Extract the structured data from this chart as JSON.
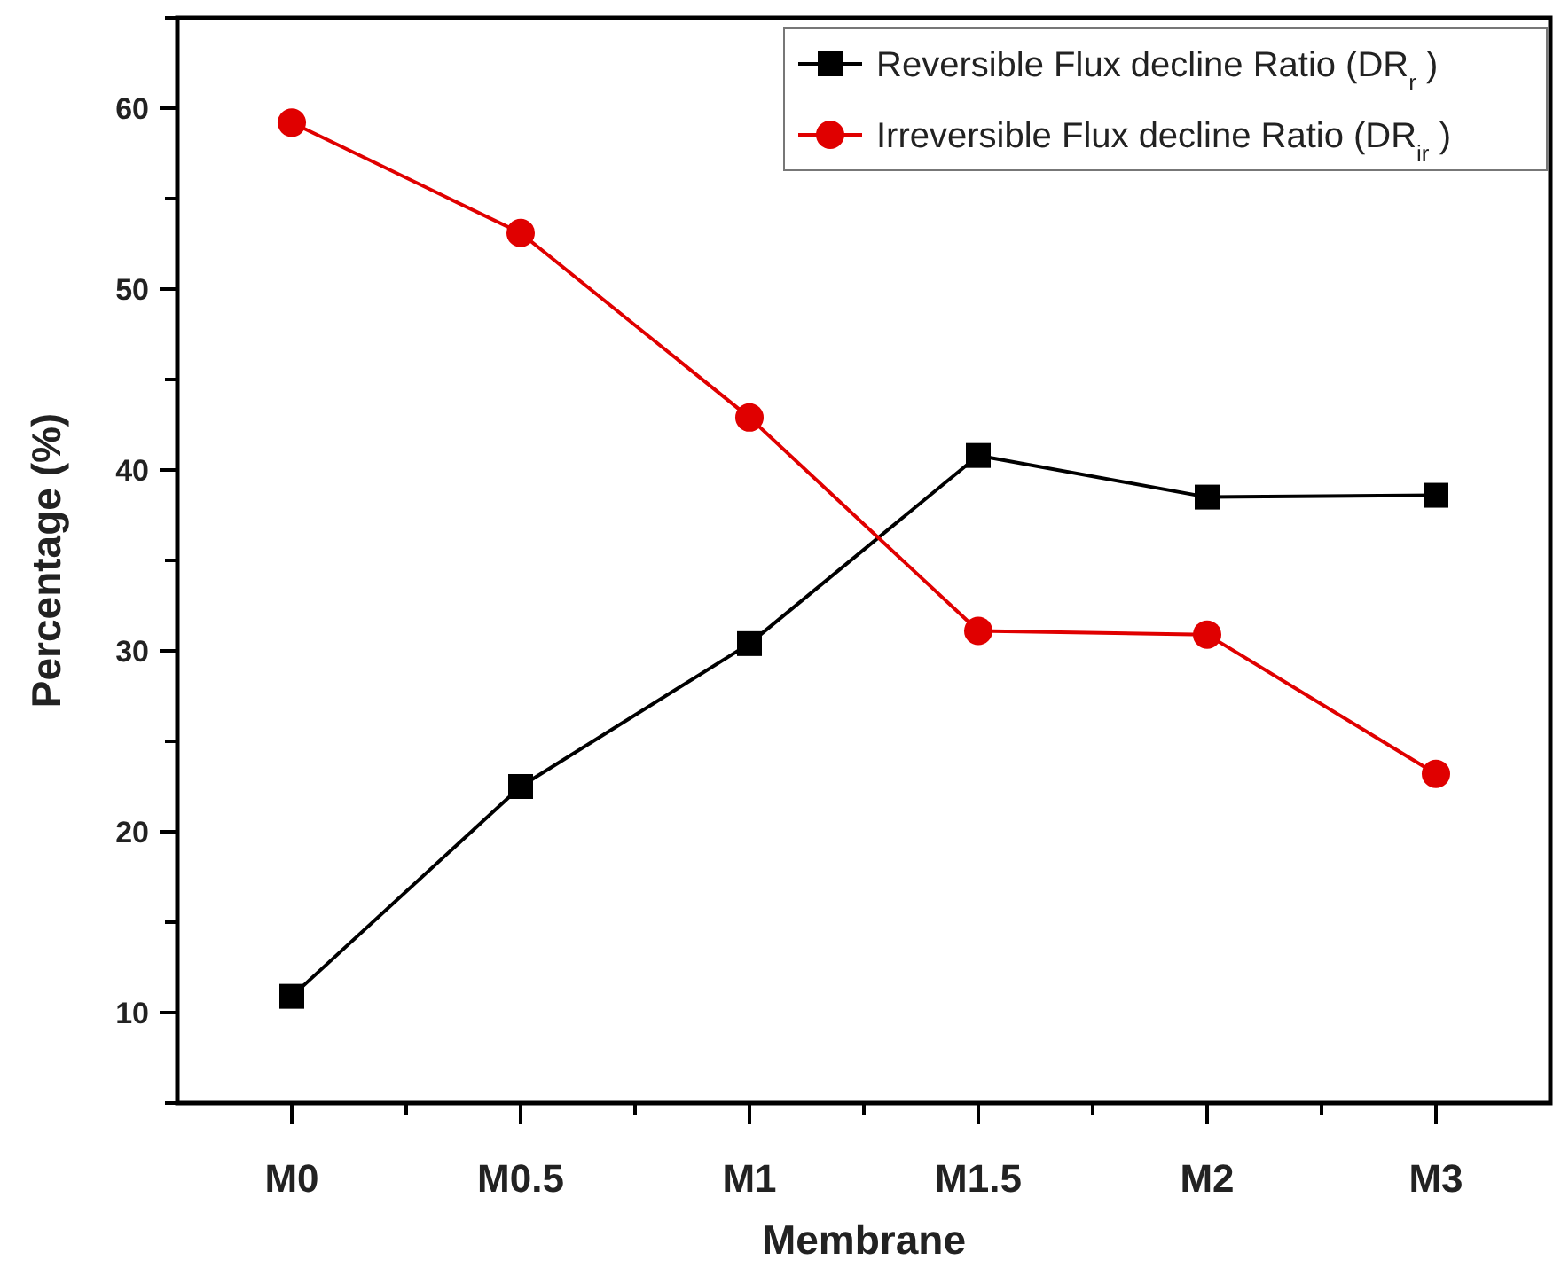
{
  "chart_data": {
    "type": "line",
    "xlabel": "Membrane",
    "ylabel": "Percentage (%)",
    "categories": [
      "M0",
      "M0.5",
      "M1",
      "M1.5",
      "M2",
      "M3"
    ],
    "series": [
      {
        "name": "Reversible Flux decline Ratio (DR$_{r}$)",
        "color": "#000000",
        "marker": "square",
        "values": [
          10.9,
          22.5,
          30.4,
          40.8,
          38.5,
          38.6
        ]
      },
      {
        "name": "Irreversible Flux decline Ratio (DR$_{ir}$)",
        "color": "#e00000",
        "marker": "circle",
        "values": [
          59.2,
          53.1,
          42.9,
          31.1,
          30.9,
          23.2
        ]
      }
    ],
    "ylim": [
      5,
      65
    ],
    "yticks": [
      {
        "value": 5,
        "label": null
      },
      10,
      {
        "value": 15,
        "label": null
      },
      20,
      {
        "value": 25,
        "label": null
      },
      30,
      {
        "value": 35,
        "label": null
      },
      40,
      {
        "value": 45,
        "label": null
      },
      50,
      {
        "value": 55,
        "label": null
      },
      60,
      {
        "value": 65,
        "label": null
      }
    ],
    "legend": "top right",
    "grid": false,
    "line_style": "solid"
  }
}
